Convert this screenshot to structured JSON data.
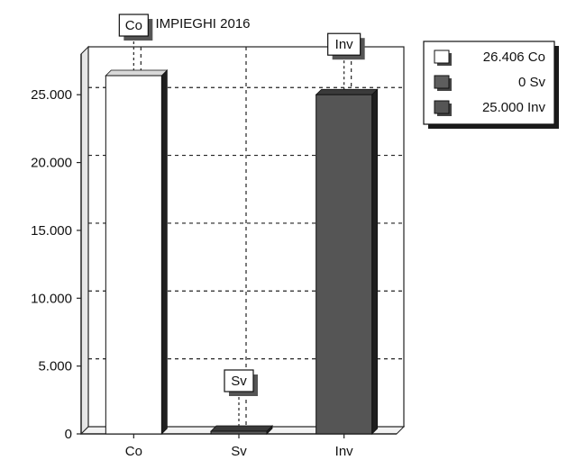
{
  "chart_data": {
    "type": "bar",
    "title": "IMPIEGHI 2016",
    "categories": [
      "Co",
      "Sv",
      "Inv"
    ],
    "values": [
      26406,
      0,
      25000
    ],
    "bar_labels": [
      "Co",
      "Sv",
      "Inv"
    ],
    "ylim": [
      0,
      28000
    ],
    "yticks": [
      0,
      5000,
      10000,
      15000,
      20000,
      25000
    ],
    "ytick_labels": [
      "0",
      "5.000",
      "10.000",
      "15.000",
      "20.000",
      "25.000"
    ],
    "grid": true,
    "legend_position": "top-right",
    "legend": [
      {
        "value_label": "26.406",
        "category": "Co"
      },
      {
        "value_label": "0",
        "category": "Sv"
      },
      {
        "value_label": "25.000",
        "category": "Inv"
      }
    ],
    "colors": [
      "#ffffff",
      "#5e5e5e",
      "#555555"
    ],
    "shadow_color": "#1f1f1f"
  }
}
